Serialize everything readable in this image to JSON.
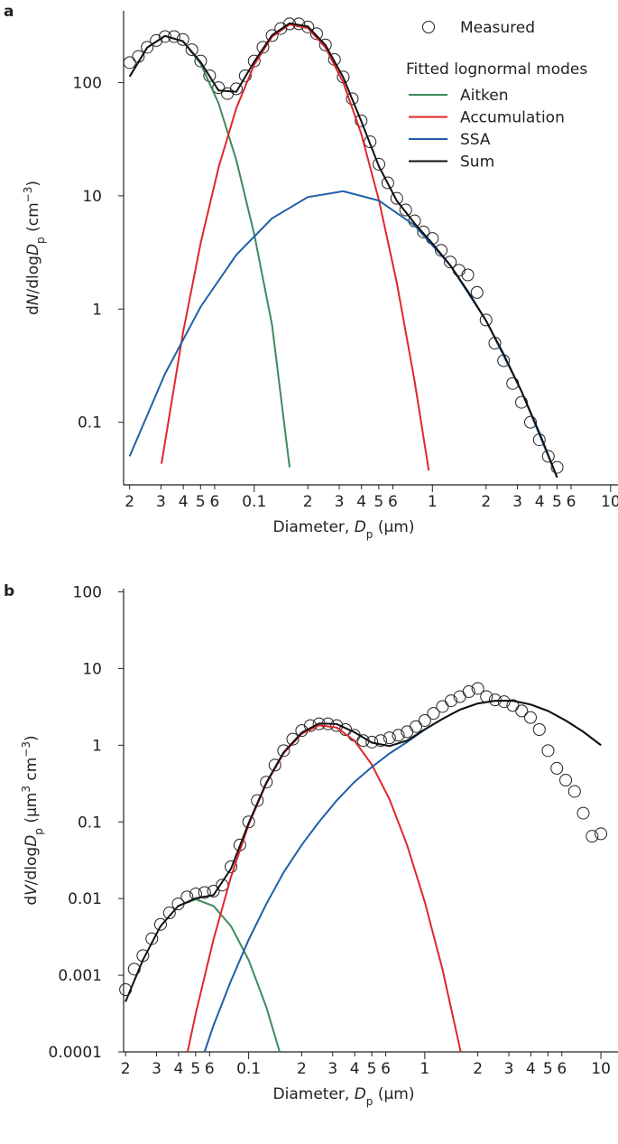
{
  "chart_data": [
    {
      "type": "line",
      "panel": "a",
      "xlog": true,
      "ylog": true,
      "xlim": [
        0.0185,
        11
      ],
      "ylim": [
        0.028,
        430
      ],
      "xticks": [
        {
          "value": 0.02,
          "label": "2"
        },
        {
          "value": 0.03,
          "label": "3"
        },
        {
          "value": 0.04,
          "label": "4"
        },
        {
          "value": 0.05,
          "label": "5"
        },
        {
          "value": 0.06,
          "label": "6"
        },
        0.1,
        {
          "value": 0.2,
          "label": "2"
        },
        {
          "value": 0.3,
          "label": "3"
        },
        {
          "value": 0.4,
          "label": "4"
        },
        {
          "value": 0.5,
          "label": "5"
        },
        {
          "value": 0.6,
          "label": "6"
        },
        1,
        {
          "value": 2,
          "label": "2"
        },
        {
          "value": 3,
          "label": "3"
        },
        {
          "value": 4,
          "label": "4"
        },
        {
          "value": 5,
          "label": "5"
        },
        {
          "value": 6,
          "label": "6"
        },
        10
      ],
      "yticks": [
        0.1,
        1,
        10,
        100
      ],
      "xlabel": [
        {
          "text": "Diameter, "
        },
        {
          "text": "D",
          "style": "italic"
        },
        {
          "text": "p",
          "style": "sub"
        },
        {
          "text": " (μm)"
        }
      ],
      "ylabel": [
        {
          "text": "d"
        },
        {
          "text": "N",
          "style": "italic"
        },
        {
          "text": "/dlog"
        },
        {
          "text": "D",
          "style": "italic"
        },
        {
          "text": "p",
          "style": "sub"
        },
        {
          "text": " (cm"
        },
        {
          "text": "−3",
          "style": "sup"
        },
        {
          "text": ")"
        }
      ],
      "legend": "top-right",
      "legend_title": "Fitted lognormal modes",
      "series": [
        {
          "name": "Measured",
          "kind": "scatter",
          "color": "#222222",
          "x": [
            0.02,
            0.0224,
            0.0251,
            0.0282,
            0.0316,
            0.0355,
            0.0398,
            0.0447,
            0.0501,
            0.0562,
            0.0631,
            0.0708,
            0.0794,
            0.0891,
            0.1,
            0.112,
            0.126,
            0.141,
            0.158,
            0.178,
            0.2,
            0.224,
            0.251,
            0.282,
            0.316,
            0.355,
            0.398,
            0.447,
            0.501,
            0.562,
            0.631,
            0.708,
            0.794,
            0.891,
            1,
            1.12,
            1.26,
            1.41,
            1.58,
            1.78,
            2.0,
            2.24,
            2.51,
            2.82,
            3.16,
            3.55,
            3.98,
            4.47,
            5.01
          ],
          "values": [
            150,
            170,
            205,
            235,
            255,
            255,
            240,
            195,
            155,
            115,
            90,
            80,
            88,
            115,
            155,
            205,
            260,
            300,
            330,
            330,
            310,
            270,
            215,
            160,
            112,
            72,
            46,
            30,
            19,
            13,
            9.5,
            7.5,
            6,
            4.8,
            4.2,
            3.3,
            2.6,
            2.2,
            2.0,
            1.4,
            0.8,
            0.5,
            0.35,
            0.22,
            0.15,
            0.1,
            0.07,
            0.05,
            0.04
          ]
        },
        {
          "name": "Aitken",
          "kind": "line",
          "color": "#3f8a5c",
          "x": [
            0.02,
            0.0251,
            0.0316,
            0.0398,
            0.0501,
            0.0631,
            0.0794,
            0.1,
            0.126,
            0.158
          ],
          "values": [
            113,
            204,
            258,
            231,
            146,
            65.5,
            20.6,
            4.58,
            0.72,
            0.04
          ]
        },
        {
          "name": "Accumulation",
          "kind": "line",
          "color": "#e0262b",
          "x": [
            0.0302,
            0.0398,
            0.0501,
            0.0631,
            0.0794,
            0.1,
            0.126,
            0.158,
            0.2,
            0.251,
            0.316,
            0.398,
            0.501,
            0.631,
            0.794,
            0.955
          ],
          "values": [
            0.043,
            0.61,
            3.85,
            17.8,
            59.5,
            144,
            255,
            326,
            303,
            204,
            100,
            35.5,
            9.15,
            1.71,
            0.232,
            0.0374
          ]
        },
        {
          "name": "SSA",
          "kind": "line",
          "color": "#1f5fa8",
          "x": [
            0.02,
            0.0316,
            0.0501,
            0.0794,
            0.126,
            0.2,
            0.316,
            0.501,
            0.794,
            1.26,
            2.0,
            3.16,
            5.01
          ],
          "values": [
            0.05,
            0.268,
            1.05,
            3.01,
            6.33,
            9.74,
            10.98,
            9.06,
            5.48,
            2.43,
            0.789,
            0.188,
            0.0326
          ]
        },
        {
          "name": "Sum",
          "kind": "line",
          "color": "#111111",
          "x": [
            0.02,
            0.0251,
            0.0316,
            0.0398,
            0.0501,
            0.0631,
            0.0794,
            0.1,
            0.126,
            0.158,
            0.2,
            0.251,
            0.316,
            0.398,
            0.501,
            0.631,
            0.794,
            1,
            1.26,
            1.58,
            2.0,
            2.51,
            3.16,
            3.98,
            5.01
          ],
          "values": [
            113,
            204,
            258,
            232,
            151,
            85,
            83,
            153,
            262,
            334,
            313,
            215,
            111,
            45.9,
            18.2,
            9.04,
            5.71,
            3.8,
            2.43,
            1.44,
            0.789,
            0.4,
            0.188,
            0.081,
            0.0326
          ]
        }
      ]
    },
    {
      "type": "line",
      "panel": "b",
      "xlog": true,
      "ylog": true,
      "xlim": [
        0.0195,
        12.5
      ],
      "ylim": [
        0.0001,
        110
      ],
      "xticks": [
        {
          "value": 0.02,
          "label": "2"
        },
        {
          "value": 0.03,
          "label": "3"
        },
        {
          "value": 0.04,
          "label": "4"
        },
        {
          "value": 0.05,
          "label": "5"
        },
        {
          "value": 0.06,
          "label": "6"
        },
        0.1,
        {
          "value": 0.2,
          "label": "2"
        },
        {
          "value": 0.3,
          "label": "3"
        },
        {
          "value": 0.4,
          "label": "4"
        },
        {
          "value": 0.5,
          "label": "5"
        },
        {
          "value": 0.6,
          "label": "6"
        },
        1,
        {
          "value": 2,
          "label": "2"
        },
        {
          "value": 3,
          "label": "3"
        },
        {
          "value": 4,
          "label": "4"
        },
        {
          "value": 5,
          "label": "5"
        },
        {
          "value": 6,
          "label": "6"
        },
        10
      ],
      "yticks": [
        0.0001,
        0.001,
        0.01,
        0.1,
        1,
        10,
        100
      ],
      "xlabel": [
        {
          "text": "Diameter, "
        },
        {
          "text": "D",
          "style": "italic"
        },
        {
          "text": "p",
          "style": "sub"
        },
        {
          "text": " (μm)"
        }
      ],
      "ylabel": [
        {
          "text": "d"
        },
        {
          "text": "V",
          "style": "italic"
        },
        {
          "text": "/dlog"
        },
        {
          "text": "D",
          "style": "italic"
        },
        {
          "text": "p",
          "style": "sub"
        },
        {
          "text": " (μm"
        },
        {
          "text": "3",
          "style": "sup"
        },
        {
          "text": " cm"
        },
        {
          "text": "−3",
          "style": "sup"
        },
        {
          "text": ")"
        }
      ],
      "series": [
        {
          "kind": "scatter",
          "color": "#222222",
          "x": [
            0.02,
            0.0224,
            0.0251,
            0.0282,
            0.0316,
            0.0355,
            0.0398,
            0.0447,
            0.0501,
            0.0562,
            0.0631,
            0.0708,
            0.0794,
            0.0891,
            0.1,
            0.112,
            0.126,
            0.141,
            0.158,
            0.178,
            0.2,
            0.224,
            0.251,
            0.282,
            0.316,
            0.355,
            0.398,
            0.447,
            0.501,
            0.562,
            0.631,
            0.708,
            0.794,
            0.891,
            1,
            1.12,
            1.26,
            1.41,
            1.58,
            1.78,
            2.0,
            2.24,
            2.51,
            2.82,
            3.16,
            3.55,
            3.98,
            4.47,
            5.01,
            5.62,
            6.31,
            7.08,
            7.94,
            8.91,
            10
          ],
          "values": [
            0.00065,
            0.0012,
            0.0018,
            0.003,
            0.0046,
            0.0065,
            0.0085,
            0.0105,
            0.0115,
            0.012,
            0.0125,
            0.015,
            0.026,
            0.05,
            0.1,
            0.19,
            0.33,
            0.55,
            0.85,
            1.2,
            1.55,
            1.8,
            1.9,
            1.9,
            1.8,
            1.6,
            1.35,
            1.15,
            1.1,
            1.15,
            1.25,
            1.35,
            1.5,
            1.75,
            2.1,
            2.6,
            3.2,
            3.8,
            4.3,
            5.0,
            5.5,
            4.3,
            3.9,
            3.7,
            3.3,
            2.8,
            2.3,
            1.6,
            0.85,
            0.5,
            0.35,
            0.25,
            0.13,
            0.065,
            0.07
          ]
        },
        {
          "kind": "line",
          "color": "#3f8a5c",
          "x": [
            0.0398,
            0.0501,
            0.0631,
            0.0794,
            0.1,
            0.126,
            0.15
          ],
          "values": [
            0.008,
            0.0098,
            0.008,
            0.00436,
            0.00158,
            0.000384,
            0.0001
          ]
        },
        {
          "kind": "line",
          "color": "#e0262b",
          "x": [
            0.045,
            0.0501,
            0.0631,
            0.0794,
            0.1,
            0.126,
            0.158,
            0.2,
            0.251,
            0.316,
            0.398,
            0.501,
            0.631,
            0.794,
            1,
            1.26,
            1.6
          ],
          "values": [
            0.0001,
            0.000318,
            0.00291,
            0.0193,
            0.092,
            0.316,
            0.787,
            1.41,
            1.82,
            1.7,
            1.15,
            0.558,
            0.196,
            0.0495,
            0.00907,
            0.0012,
            0.0001
          ]
        },
        {
          "kind": "line",
          "color": "#1f5fa8",
          "x": [
            0.0562,
            0.0631,
            0.0794,
            0.1,
            0.126,
            0.158,
            0.2,
            0.251,
            0.316,
            0.398,
            0.501,
            0.631,
            0.794,
            1,
            1.26,
            1.58,
            2.0,
            2.51,
            3.16,
            3.98,
            5.01,
            6.31,
            7.94,
            10
          ],
          "values": [
            0.0001,
            0.00022,
            0.00085,
            0.0029,
            0.0085,
            0.022,
            0.05,
            0.1,
            0.19,
            0.33,
            0.52,
            0.78,
            1.1,
            1.6,
            2.2,
            2.9,
            3.5,
            3.8,
            3.8,
            3.4,
            2.8,
            2.1,
            1.5,
            1.0
          ]
        },
        {
          "kind": "line",
          "color": "#111111",
          "x": [
            0.02,
            0.0251,
            0.0316,
            0.0398,
            0.0501,
            0.0631,
            0.0794,
            0.1,
            0.126,
            0.158,
            0.2,
            0.251,
            0.316,
            0.398,
            0.501,
            0.631,
            0.794,
            1,
            1.26,
            1.58,
            2.0,
            2.51,
            3.16,
            3.98,
            5.01,
            6.31,
            7.94,
            10
          ],
          "values": [
            0.00045,
            0.00158,
            0.00436,
            0.008,
            0.0101,
            0.0111,
            0.0245,
            0.0965,
            0.325,
            0.809,
            1.46,
            1.92,
            1.89,
            1.48,
            1.08,
            0.976,
            1.15,
            1.61,
            2.2,
            2.9,
            3.5,
            3.8,
            3.8,
            3.4,
            2.8,
            2.1,
            1.5,
            1.0
          ]
        }
      ]
    }
  ]
}
